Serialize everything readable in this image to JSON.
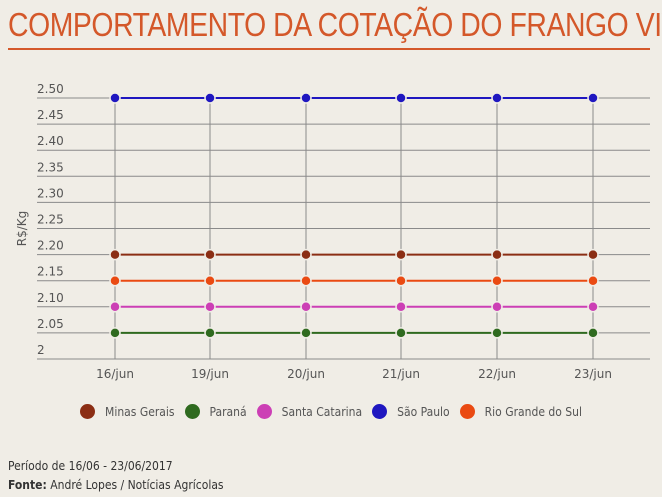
{
  "chart_data": {
    "type": "line",
    "title": "COMPORTAMENTO DA COTAÇÃO DO FRANGO VIVO",
    "ylabel": "R$/Kg",
    "xlabel": "",
    "categories": [
      "16/jun",
      "19/jun",
      "20/jun",
      "21/jun",
      "22/jun",
      "23/jun"
    ],
    "ylim": [
      2,
      2.5
    ],
    "yticks": [
      "2",
      "2.05",
      "2.10",
      "2.15",
      "2.20",
      "2.25",
      "2.30",
      "2.35",
      "2.40",
      "2.45",
      "2.50"
    ],
    "grid": true,
    "legend_position": "bottom",
    "series": [
      {
        "name": "Minas Gerais",
        "color": "#8b2e14",
        "values": [
          2.2,
          2.2,
          2.2,
          2.2,
          2.2,
          2.2
        ]
      },
      {
        "name": "Paraná",
        "color": "#2f6a1f",
        "values": [
          2.05,
          2.05,
          2.05,
          2.05,
          2.05,
          2.05
        ]
      },
      {
        "name": "Santa Catarina",
        "color": "#cc3fb5",
        "values": [
          2.1,
          2.1,
          2.1,
          2.1,
          2.1,
          2.1
        ]
      },
      {
        "name": "São Paulo",
        "color": "#1f17c0",
        "values": [
          2.5,
          2.5,
          2.5,
          2.5,
          2.5,
          2.5
        ]
      },
      {
        "name": "Rio Grande do Sul",
        "color": "#ea4a12",
        "values": [
          2.15,
          2.15,
          2.15,
          2.15,
          2.15,
          2.15
        ]
      }
    ]
  },
  "footer": {
    "period": "Período de 16/06 - 23/06/2017",
    "source_label": "Fonte:",
    "source": " André Lopes / Notícias Agrícolas"
  }
}
